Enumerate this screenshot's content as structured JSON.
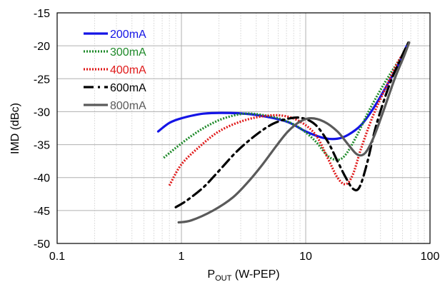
{
  "chart_data": {
    "type": "line",
    "title": "",
    "xlabel": {
      "main": "P",
      "sub": "OUT",
      "rest": " (W-PEP)"
    },
    "ylabel": "IMD (dBc)",
    "xscale": "log",
    "xlim": [
      0.1,
      100
    ],
    "ylim": [
      -50,
      -15
    ],
    "x_ticks": [
      {
        "value": 0.1,
        "label": "0.1"
      },
      {
        "value": 1,
        "label": "1"
      },
      {
        "value": 10,
        "label": "10"
      },
      {
        "value": 100,
        "label": "100"
      }
    ],
    "y_ticks": [
      {
        "value": -15,
        "label": "-15"
      },
      {
        "value": -20,
        "label": "-20"
      },
      {
        "value": -25,
        "label": "-25"
      },
      {
        "value": -30,
        "label": "-30"
      },
      {
        "value": -35,
        "label": "-35"
      },
      {
        "value": -40,
        "label": "-40"
      },
      {
        "value": -45,
        "label": "-45"
      },
      {
        "value": -50,
        "label": "-50"
      }
    ],
    "grid": true,
    "legend": "top-left",
    "series": [
      {
        "name": "200mA",
        "color": "#1414e6",
        "dash": "solid",
        "points": [
          [
            0.65,
            -33.0
          ],
          [
            0.8,
            -31.7
          ],
          [
            1.0,
            -31.0
          ],
          [
            1.5,
            -30.3
          ],
          [
            2.5,
            -30.2
          ],
          [
            4,
            -30.5
          ],
          [
            7,
            -31.5
          ],
          [
            10,
            -33.0
          ],
          [
            14,
            -34.0
          ],
          [
            18,
            -34.1
          ],
          [
            22,
            -33.5
          ],
          [
            28,
            -32.0
          ],
          [
            35,
            -29.5
          ],
          [
            45,
            -26.0
          ],
          [
            55,
            -23.0
          ],
          [
            65,
            -20.0
          ]
        ]
      },
      {
        "name": "300mA",
        "color": "#1f8a2a",
        "dash": "dotted",
        "points": [
          [
            0.72,
            -37.0
          ],
          [
            0.9,
            -35.5
          ],
          [
            1.2,
            -33.7
          ],
          [
            1.6,
            -32.2
          ],
          [
            2.2,
            -31.0
          ],
          [
            3.2,
            -30.3
          ],
          [
            4.5,
            -30.5
          ],
          [
            6.5,
            -31.2
          ],
          [
            9,
            -32.5
          ],
          [
            12,
            -34.5
          ],
          [
            15,
            -36.7
          ],
          [
            18,
            -37.3
          ],
          [
            21,
            -36.5
          ],
          [
            26,
            -33.5
          ],
          [
            32,
            -30.0
          ],
          [
            42,
            -26.0
          ],
          [
            55,
            -22.5
          ],
          [
            65,
            -20.5
          ]
        ]
      },
      {
        "name": "400mA",
        "color": "#e01a1a",
        "dash": "dotted",
        "points": [
          [
            0.8,
            -41.2
          ],
          [
            1.0,
            -38.0
          ],
          [
            1.4,
            -35.3
          ],
          [
            2.0,
            -33.0
          ],
          [
            3.0,
            -31.5
          ],
          [
            4.5,
            -30.7
          ],
          [
            6.5,
            -30.6
          ],
          [
            9,
            -31.5
          ],
          [
            12,
            -33.5
          ],
          [
            15,
            -37.0
          ],
          [
            18,
            -40.0
          ],
          [
            21,
            -41.0
          ],
          [
            24,
            -39.5
          ],
          [
            28,
            -35.5
          ],
          [
            35,
            -30.5
          ],
          [
            45,
            -26.0
          ],
          [
            55,
            -22.5
          ],
          [
            65,
            -20.5
          ]
        ]
      },
      {
        "name": "600mA",
        "color": "#000000",
        "dash": "dashdot",
        "points": [
          [
            0.9,
            -44.5
          ],
          [
            1.1,
            -43.5
          ],
          [
            1.5,
            -41.5
          ],
          [
            2.0,
            -39.0
          ],
          [
            2.8,
            -36.0
          ],
          [
            4.0,
            -33.5
          ],
          [
            5.5,
            -31.8
          ],
          [
            7.5,
            -31.0
          ],
          [
            9.5,
            -31.0
          ],
          [
            12,
            -32.0
          ],
          [
            15,
            -34.5
          ],
          [
            18,
            -37.5
          ],
          [
            21,
            -40.0
          ],
          [
            24,
            -41.7
          ],
          [
            27,
            -41.5
          ],
          [
            31,
            -38.0
          ],
          [
            37,
            -32.0
          ],
          [
            47,
            -26.0
          ],
          [
            58,
            -22.0
          ],
          [
            67,
            -19.5
          ]
        ]
      },
      {
        "name": "800mA",
        "color": "#5a5a5a",
        "dash": "solid",
        "points": [
          [
            0.95,
            -46.8
          ],
          [
            1.2,
            -46.5
          ],
          [
            1.8,
            -45.0
          ],
          [
            2.6,
            -43.0
          ],
          [
            3.5,
            -40.5
          ],
          [
            4.5,
            -38.0
          ],
          [
            5.8,
            -35.2
          ],
          [
            7.2,
            -33.0
          ],
          [
            9,
            -31.5
          ],
          [
            11,
            -31.0
          ],
          [
            14,
            -31.5
          ],
          [
            18,
            -33.0
          ],
          [
            22,
            -35.0
          ],
          [
            26,
            -36.5
          ],
          [
            30,
            -36.3
          ],
          [
            35,
            -34.0
          ],
          [
            42,
            -30.0
          ],
          [
            52,
            -25.0
          ],
          [
            62,
            -21.5
          ],
          [
            68,
            -19.5
          ]
        ]
      }
    ]
  }
}
